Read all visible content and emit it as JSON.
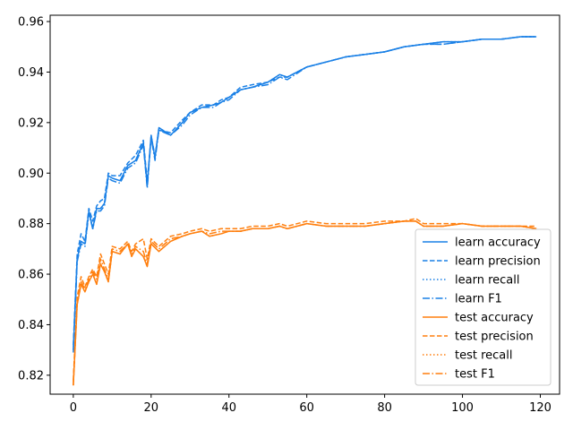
{
  "chart_data": {
    "type": "line",
    "title": "",
    "xlabel": "",
    "ylabel": "",
    "xlim": [
      -5.95,
      124.95
    ],
    "ylim": [
      0.8125,
      0.9625
    ],
    "xticks": [
      0,
      20,
      40,
      60,
      80,
      100,
      120
    ],
    "yticks": [
      0.82,
      0.84,
      0.86,
      0.88,
      0.9,
      0.92,
      0.94,
      0.96
    ],
    "ytick_labels": [
      "0.82",
      "0.84",
      "0.86",
      "0.88",
      "0.90",
      "0.92",
      "0.94",
      "0.96"
    ],
    "grid": false,
    "legend_position": "lower-right",
    "colors": {
      "learn": "#1a80e6",
      "test": "#ff7f0e"
    },
    "series": [
      {
        "name": "learn accuracy",
        "group": "learn",
        "dash": "solid",
        "x": [
          0,
          1,
          2,
          3,
          4,
          5,
          6,
          7,
          8,
          9,
          10,
          12,
          14,
          16,
          18,
          19,
          20,
          21,
          22,
          25,
          28,
          30,
          33,
          36,
          38,
          40,
          43,
          46,
          50,
          53,
          55,
          60,
          65,
          70,
          75,
          80,
          85,
          90,
          95,
          100,
          105,
          110,
          115,
          119
        ],
        "y": [
          0.83,
          0.866,
          0.873,
          0.872,
          0.885,
          0.878,
          0.886,
          0.886,
          0.888,
          0.899,
          0.898,
          0.897,
          0.903,
          0.905,
          0.912,
          0.895,
          0.915,
          0.906,
          0.918,
          0.915,
          0.92,
          0.924,
          0.926,
          0.927,
          0.928,
          0.93,
          0.933,
          0.934,
          0.936,
          0.939,
          0.938,
          0.942,
          0.944,
          0.946,
          0.947,
          0.948,
          0.95,
          0.951,
          0.952,
          0.952,
          0.953,
          0.953,
          0.954,
          0.954
        ]
      },
      {
        "name": "learn precision",
        "group": "learn",
        "dash": "dashed",
        "x": [
          0,
          1,
          2,
          3,
          4,
          5,
          6,
          7,
          8,
          9,
          10,
          12,
          14,
          16,
          18,
          19,
          20,
          21,
          22,
          25,
          28,
          30,
          33,
          36,
          38,
          40,
          43,
          46,
          50,
          53,
          55,
          60,
          65,
          70,
          75,
          80,
          85,
          90,
          95,
          100,
          105,
          110,
          115,
          119
        ],
        "y": [
          0.832,
          0.868,
          0.876,
          0.873,
          0.886,
          0.881,
          0.887,
          0.889,
          0.89,
          0.9,
          0.899,
          0.899,
          0.904,
          0.907,
          0.913,
          0.897,
          0.914,
          0.907,
          0.917,
          0.916,
          0.921,
          0.924,
          0.927,
          0.927,
          0.929,
          0.93,
          0.934,
          0.935,
          0.936,
          0.938,
          0.938,
          0.942,
          0.944,
          0.946,
          0.947,
          0.948,
          0.95,
          0.951,
          0.951,
          0.952,
          0.953,
          0.953,
          0.954,
          0.954
        ]
      },
      {
        "name": "learn recall",
        "group": "learn",
        "dash": "dotted",
        "x": [
          0,
          1,
          2,
          3,
          4,
          5,
          6,
          7,
          8,
          9,
          10,
          12,
          14,
          16,
          18,
          19,
          20,
          21,
          22,
          25,
          28,
          30,
          33,
          36,
          38,
          40,
          43,
          46,
          50,
          53,
          55,
          60,
          65,
          70,
          75,
          80,
          85,
          90,
          95,
          100,
          105,
          110,
          115,
          119
        ],
        "y": [
          0.83,
          0.866,
          0.873,
          0.872,
          0.885,
          0.878,
          0.886,
          0.886,
          0.888,
          0.899,
          0.898,
          0.897,
          0.903,
          0.905,
          0.912,
          0.895,
          0.915,
          0.906,
          0.918,
          0.915,
          0.92,
          0.924,
          0.926,
          0.927,
          0.928,
          0.93,
          0.933,
          0.934,
          0.936,
          0.939,
          0.938,
          0.942,
          0.944,
          0.946,
          0.947,
          0.948,
          0.95,
          0.951,
          0.952,
          0.952,
          0.953,
          0.953,
          0.954,
          0.954
        ]
      },
      {
        "name": "learn F1",
        "group": "learn",
        "dash": "dashdot",
        "x": [
          0,
          1,
          2,
          3,
          4,
          5,
          6,
          7,
          8,
          9,
          10,
          12,
          14,
          16,
          18,
          19,
          20,
          21,
          22,
          25,
          28,
          30,
          33,
          36,
          38,
          40,
          43,
          46,
          50,
          53,
          55,
          60,
          65,
          70,
          75,
          80,
          85,
          90,
          95,
          100,
          105,
          110,
          115,
          119
        ],
        "y": [
          0.829,
          0.865,
          0.872,
          0.871,
          0.884,
          0.878,
          0.885,
          0.885,
          0.887,
          0.898,
          0.897,
          0.896,
          0.902,
          0.904,
          0.911,
          0.894,
          0.914,
          0.905,
          0.917,
          0.915,
          0.919,
          0.923,
          0.926,
          0.926,
          0.928,
          0.929,
          0.933,
          0.934,
          0.935,
          0.938,
          0.937,
          0.942,
          0.944,
          0.946,
          0.947,
          0.948,
          0.95,
          0.951,
          0.951,
          0.952,
          0.953,
          0.953,
          0.954,
          0.954
        ]
      },
      {
        "name": "test accuracy",
        "group": "test",
        "dash": "solid",
        "x": [
          0,
          1,
          2,
          3,
          4,
          5,
          6,
          7,
          8,
          9,
          10,
          12,
          14,
          15,
          16,
          18,
          19,
          20,
          22,
          25,
          28,
          30,
          33,
          35,
          38,
          40,
          43,
          46,
          50,
          53,
          55,
          60,
          65,
          70,
          75,
          80,
          85,
          88,
          90,
          95,
          100,
          105,
          110,
          115,
          119
        ],
        "y": [
          0.816,
          0.848,
          0.856,
          0.853,
          0.857,
          0.86,
          0.856,
          0.864,
          0.861,
          0.857,
          0.869,
          0.868,
          0.872,
          0.867,
          0.87,
          0.867,
          0.863,
          0.872,
          0.869,
          0.873,
          0.875,
          0.876,
          0.877,
          0.875,
          0.876,
          0.877,
          0.877,
          0.878,
          0.878,
          0.879,
          0.878,
          0.88,
          0.879,
          0.879,
          0.879,
          0.88,
          0.881,
          0.881,
          0.879,
          0.879,
          0.88,
          0.879,
          0.879,
          0.879,
          0.878
        ]
      },
      {
        "name": "test precision",
        "group": "test",
        "dash": "dashed",
        "x": [
          0,
          1,
          2,
          3,
          4,
          5,
          6,
          7,
          8,
          9,
          10,
          12,
          14,
          15,
          16,
          18,
          19,
          20,
          22,
          25,
          28,
          30,
          33,
          35,
          38,
          40,
          43,
          46,
          50,
          53,
          55,
          60,
          65,
          70,
          75,
          80,
          85,
          88,
          90,
          95,
          100,
          105,
          110,
          115,
          119
        ],
        "y": [
          0.818,
          0.851,
          0.859,
          0.855,
          0.859,
          0.862,
          0.859,
          0.868,
          0.864,
          0.86,
          0.871,
          0.87,
          0.873,
          0.869,
          0.872,
          0.874,
          0.866,
          0.874,
          0.871,
          0.875,
          0.876,
          0.877,
          0.878,
          0.877,
          0.878,
          0.878,
          0.878,
          0.879,
          0.879,
          0.88,
          0.879,
          0.881,
          0.88,
          0.88,
          0.88,
          0.881,
          0.881,
          0.882,
          0.88,
          0.88,
          0.88,
          0.879,
          0.879,
          0.879,
          0.879
        ]
      },
      {
        "name": "test recall",
        "group": "test",
        "dash": "dotted",
        "x": [
          0,
          1,
          2,
          3,
          4,
          5,
          6,
          7,
          8,
          9,
          10,
          12,
          14,
          15,
          16,
          18,
          19,
          20,
          22,
          25,
          28,
          30,
          33,
          35,
          38,
          40,
          43,
          46,
          50,
          53,
          55,
          60,
          65,
          70,
          75,
          80,
          85,
          88,
          90,
          95,
          100,
          105,
          110,
          115,
          119
        ],
        "y": [
          0.816,
          0.848,
          0.856,
          0.853,
          0.857,
          0.86,
          0.856,
          0.864,
          0.861,
          0.857,
          0.869,
          0.868,
          0.872,
          0.867,
          0.87,
          0.867,
          0.863,
          0.872,
          0.869,
          0.873,
          0.875,
          0.876,
          0.877,
          0.875,
          0.876,
          0.877,
          0.877,
          0.878,
          0.878,
          0.879,
          0.878,
          0.88,
          0.879,
          0.879,
          0.879,
          0.88,
          0.881,
          0.881,
          0.879,
          0.879,
          0.88,
          0.879,
          0.879,
          0.879,
          0.878
        ]
      },
      {
        "name": "test F1",
        "group": "test",
        "dash": "dashdot",
        "x": [
          0,
          1,
          2,
          3,
          4,
          5,
          6,
          7,
          8,
          9,
          10,
          12,
          14,
          15,
          16,
          18,
          19,
          20,
          22,
          25,
          28,
          30,
          33,
          35,
          38,
          40,
          43,
          46,
          50,
          53,
          55,
          60,
          65,
          70,
          75,
          80,
          85,
          88,
          90,
          95,
          100,
          105,
          110,
          115,
          119
        ],
        "y": [
          0.816,
          0.849,
          0.857,
          0.854,
          0.858,
          0.861,
          0.858,
          0.866,
          0.862,
          0.858,
          0.87,
          0.869,
          0.872,
          0.868,
          0.871,
          0.869,
          0.864,
          0.873,
          0.87,
          0.874,
          0.875,
          0.876,
          0.877,
          0.876,
          0.877,
          0.877,
          0.877,
          0.878,
          0.878,
          0.879,
          0.878,
          0.88,
          0.879,
          0.879,
          0.879,
          0.88,
          0.881,
          0.881,
          0.879,
          0.879,
          0.88,
          0.879,
          0.879,
          0.879,
          0.878
        ]
      }
    ]
  }
}
